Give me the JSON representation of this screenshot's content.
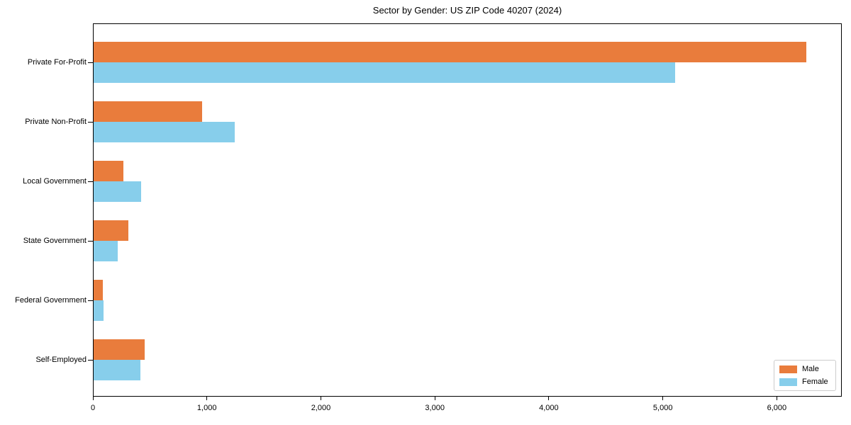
{
  "title": "Sector by Gender: US ZIP Code 40207 (2024)",
  "chart_data": {
    "type": "bar",
    "orientation": "horizontal",
    "title": "Sector by Gender: US ZIP Code 40207 (2024)",
    "xlabel": "",
    "ylabel": "",
    "categories": [
      "Private For-Profit",
      "Private Non-Profit",
      "Local Government",
      "State Government",
      "Federal Government",
      "Self-Employed"
    ],
    "series": [
      {
        "name": "Male",
        "color": "#e97c3c",
        "values": [
          6250,
          950,
          260,
          305,
          80,
          445
        ]
      },
      {
        "name": "Female",
        "color": "#87ceeb",
        "values": [
          5100,
          1240,
          415,
          210,
          85,
          410
        ]
      }
    ],
    "xlim": [
      0,
      6570
    ],
    "xticks": [
      0,
      1000,
      2000,
      3000,
      4000,
      5000,
      6000
    ],
    "xtick_labels": [
      "0",
      "1,000",
      "2,000",
      "3,000",
      "4,000",
      "5,000",
      "6,000"
    ],
    "grid": false,
    "legend_position": "lower right",
    "background": "#ffffff",
    "frame_color": "#000000"
  }
}
